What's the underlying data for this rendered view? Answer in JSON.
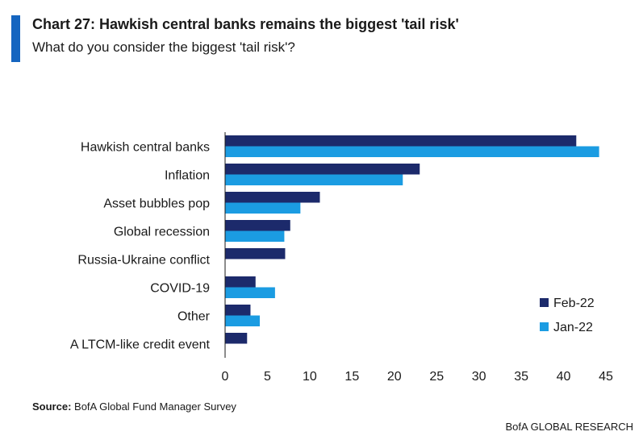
{
  "header": {
    "title": "Chart 27: Hawkish central banks remains the biggest 'tail risk'",
    "subtitle": "What do you consider the biggest 'tail risk'?"
  },
  "footer": {
    "source_label": "Source:",
    "source_text": "BofA Global Fund Manager Survey",
    "brand": "BofA GLOBAL RESEARCH"
  },
  "colors": {
    "feb": "#1c2a6b",
    "jan": "#1b9ce2",
    "accent": "#1565c0"
  },
  "chart_data": {
    "type": "bar",
    "orientation": "horizontal",
    "categories": [
      "Hawkish central banks",
      "Inflation",
      "Asset bubbles pop",
      "Global recession",
      "Russia-Ukraine conflict",
      "COVID-19",
      "Other",
      "A LTCM-like credit event"
    ],
    "series": [
      {
        "name": "Feb-22",
        "color": "#1c2a6b",
        "values": [
          41.5,
          23,
          11.2,
          7.7,
          7.1,
          3.6,
          3.0,
          2.6
        ]
      },
      {
        "name": "Jan-22",
        "color": "#1b9ce2",
        "values": [
          44.2,
          21,
          8.9,
          7.0,
          null,
          5.9,
          4.1,
          null
        ]
      }
    ],
    "xlim": [
      0,
      45
    ],
    "xticks": [
      0,
      5,
      10,
      15,
      20,
      25,
      30,
      35,
      40,
      45
    ],
    "grid": false,
    "legend_position": "bottom-right"
  }
}
